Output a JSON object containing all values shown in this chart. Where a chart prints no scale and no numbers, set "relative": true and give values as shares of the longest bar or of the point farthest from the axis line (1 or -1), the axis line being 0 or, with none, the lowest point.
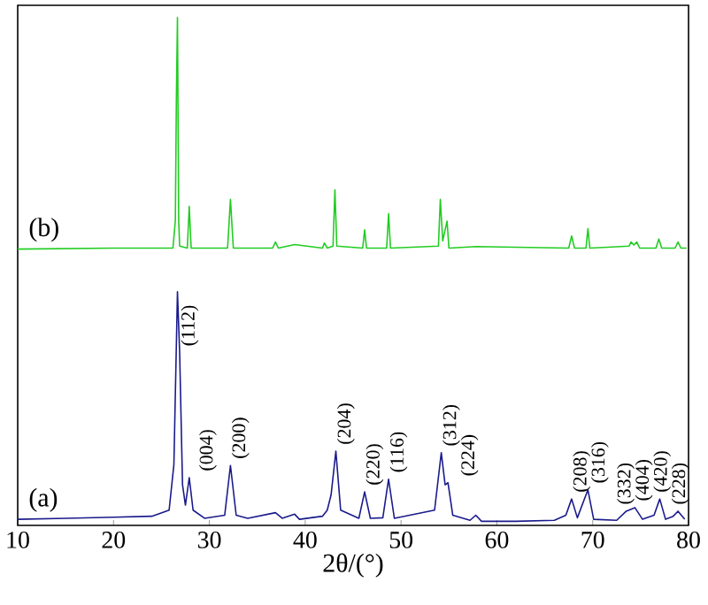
{
  "chart_data": {
    "type": "line",
    "xlabel": "2θ/(°)",
    "relative": true,
    "xlim": [
      10,
      80
    ],
    "xticks": [
      10,
      20,
      30,
      40,
      50,
      60,
      70,
      80
    ],
    "tick_labels": "x",
    "marker": "none",
    "line_style": "solid",
    "series": [
      {
        "name": "(b)",
        "color": "#22cc22",
        "x": [
          10,
          20,
          26.2,
          26.45,
          26.55,
          26.67,
          26.8,
          26.9,
          27.7,
          27.9,
          28.1,
          31.9,
          32.2,
          32.5,
          36.6,
          36.9,
          37.2,
          38.9,
          41.8,
          42.0,
          42.3,
          42.9,
          43.1,
          43.3,
          46.0,
          46.2,
          46.4,
          48.5,
          48.7,
          48.9,
          53.9,
          54.1,
          54.35,
          54.8,
          55.0,
          57.8,
          67.5,
          67.8,
          68.1,
          69.3,
          69.5,
          69.7,
          73.8,
          74.0,
          74.3,
          74.6,
          74.9,
          76.6,
          76.9,
          77.2,
          78.6,
          78.9,
          79.2,
          79.8
        ],
        "values": [
          0.544,
          0.546,
          0.546,
          0.6,
          0.826,
          1.0,
          0.6,
          0.55,
          0.546,
          0.628,
          0.546,
          0.546,
          0.642,
          0.546,
          0.546,
          0.558,
          0.546,
          0.553,
          0.546,
          0.556,
          0.546,
          0.55,
          0.661,
          0.55,
          0.546,
          0.582,
          0.546,
          0.546,
          0.614,
          0.546,
          0.55,
          0.642,
          0.56,
          0.599,
          0.546,
          0.549,
          0.546,
          0.57,
          0.546,
          0.546,
          0.584,
          0.546,
          0.55,
          0.558,
          0.552,
          0.558,
          0.546,
          0.546,
          0.564,
          0.546,
          0.546,
          0.558,
          0.546,
          0.546
        ]
      },
      {
        "name": "(a)",
        "color": "#1a1a8c",
        "x": [
          10,
          15,
          20,
          24,
          25.8,
          26.3,
          26.67,
          26.9,
          27.2,
          27.5,
          27.9,
          28.3,
          29.5,
          31.6,
          32.2,
          32.8,
          34,
          36.9,
          37.6,
          38.9,
          39.4,
          41.8,
          42.3,
          42.7,
          43.2,
          43.7,
          45.6,
          46.2,
          46.8,
          48.1,
          48.7,
          49.3,
          53.5,
          54.2,
          54.6,
          54.9,
          55.4,
          57.2,
          57.8,
          58.4,
          62,
          66,
          67.2,
          67.8,
          68.4,
          69.5,
          70.1,
          72.5,
          73.5,
          74.4,
          75.2,
          76.4,
          77.0,
          77.6,
          78.4,
          78.9,
          79.6
        ],
        "values": [
          0.012,
          0.014,
          0.016,
          0.018,
          0.03,
          0.12,
          0.46,
          0.34,
          0.08,
          0.04,
          0.094,
          0.03,
          0.014,
          0.02,
          0.118,
          0.02,
          0.014,
          0.025,
          0.014,
          0.022,
          0.012,
          0.018,
          0.03,
          0.06,
          0.146,
          0.03,
          0.014,
          0.066,
          0.014,
          0.015,
          0.091,
          0.014,
          0.03,
          0.143,
          0.08,
          0.084,
          0.02,
          0.01,
          0.02,
          0.008,
          0.008,
          0.01,
          0.02,
          0.052,
          0.015,
          0.07,
          0.012,
          0.01,
          0.028,
          0.035,
          0.012,
          0.02,
          0.052,
          0.012,
          0.018,
          0.028,
          0.012
        ]
      }
    ],
    "annotations": [
      {
        "text": "(112)",
        "x": 26.9,
        "y": 0.34
      },
      {
        "text": "(004)",
        "x": 27.9,
        "y": 0.094
      },
      {
        "text": "(200)",
        "x": 32.2,
        "y": 0.118
      },
      {
        "text": "(204)",
        "x": 43.2,
        "y": 0.146
      },
      {
        "text": "(220)",
        "x": 46.2,
        "y": 0.066
      },
      {
        "text": "(116)",
        "x": 48.7,
        "y": 0.091
      },
      {
        "text": "(312)",
        "x": 54.2,
        "y": 0.143
      },
      {
        "text": "(224)",
        "x": 54.9,
        "y": 0.084
      },
      {
        "text": "(208)",
        "x": 67.8,
        "y": 0.052
      },
      {
        "text": "(316)",
        "x": 69.5,
        "y": 0.07
      },
      {
        "text": "(332)",
        "x": 73.5,
        "y": 0.028
      },
      {
        "text": "(404)",
        "x": 74.4,
        "y": 0.035
      },
      {
        "text": "(420)",
        "x": 77.0,
        "y": 0.052
      },
      {
        "text": "(228)",
        "x": 78.9,
        "y": 0.028
      }
    ]
  }
}
